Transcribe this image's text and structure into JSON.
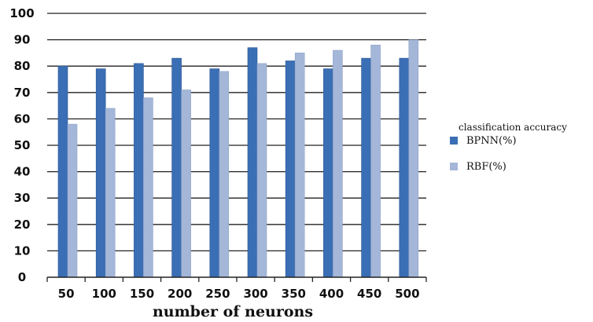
{
  "chart_data": {
    "type": "bar",
    "categories": [
      "50",
      "100",
      "150",
      "200",
      "250",
      "300",
      "350",
      "400",
      "450",
      "500"
    ],
    "series": [
      {
        "name": "BPNN(%)",
        "color": "#3b6fb5",
        "values": [
          80,
          79,
          81,
          83,
          79,
          87,
          82,
          79,
          83,
          83
        ]
      },
      {
        "name": "RBF(%)",
        "color": "#a4b7d9",
        "values": [
          58,
          64,
          68,
          71,
          78,
          81,
          85,
          86,
          88,
          90
        ]
      }
    ],
    "title": "",
    "xlabel": "number of neurons",
    "ylabel": "",
    "ylim": [
      0,
      100
    ],
    "yticks": [
      0,
      10,
      20,
      30,
      40,
      50,
      60,
      70,
      80,
      90,
      100
    ],
    "grid": true,
    "legend": {
      "title": "classification accuracy",
      "placement": "right"
    }
  }
}
